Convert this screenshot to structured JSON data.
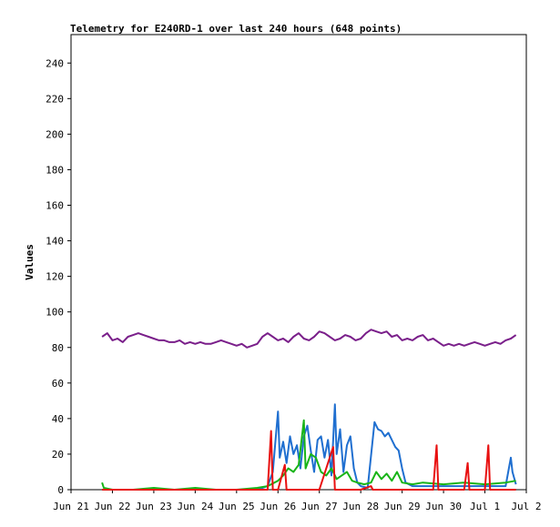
{
  "chart_data": {
    "type": "line",
    "title": "Telemetry for E240RD-1 over last 240 hours (648 points)",
    "xlabel": "",
    "ylabel": "Values",
    "ylim": [
      0,
      256
    ],
    "yticks": [
      0,
      20,
      40,
      60,
      80,
      100,
      120,
      140,
      160,
      180,
      200,
      220,
      240
    ],
    "xlim": [
      "2021-06-21",
      "2021-07-02"
    ],
    "xticks": [
      {
        "date": "2021-06-21",
        "label": "Jun 21"
      },
      {
        "date": "2021-06-22",
        "label": "Jun 22"
      },
      {
        "date": "2021-06-23",
        "label": "Jun 23"
      },
      {
        "date": "2021-06-24",
        "label": "Jun 24"
      },
      {
        "date": "2021-06-25",
        "label": "Jun 25"
      },
      {
        "date": "2021-06-26",
        "label": "Jun 26"
      },
      {
        "date": "2021-06-27",
        "label": "Jun 27"
      },
      {
        "date": "2021-06-28",
        "label": "Jun 28"
      },
      {
        "date": "2021-06-29",
        "label": "Jun 29"
      },
      {
        "date": "2021-06-30",
        "label": "Jun 30"
      },
      {
        "date": "2021-07-01",
        "label": "Jul 1"
      },
      {
        "date": "2021-07-02",
        "label": "Jul 2"
      }
    ],
    "grid": false,
    "legend": "none",
    "series": [
      {
        "color": "#7a1f8a",
        "points": [
          [
            "2021-06-21 18:00",
            86
          ],
          [
            "2021-06-21 21:00",
            88
          ],
          [
            "2021-06-22 00:00",
            84
          ],
          [
            "2021-06-22 03:00",
            85
          ],
          [
            "2021-06-22 06:00",
            83
          ],
          [
            "2021-06-22 09:00",
            86
          ],
          [
            "2021-06-22 12:00",
            87
          ],
          [
            "2021-06-22 15:00",
            88
          ],
          [
            "2021-06-22 18:00",
            87
          ],
          [
            "2021-06-22 21:00",
            86
          ],
          [
            "2021-06-23 00:00",
            85
          ],
          [
            "2021-06-23 03:00",
            84
          ],
          [
            "2021-06-23 06:00",
            84
          ],
          [
            "2021-06-23 09:00",
            83
          ],
          [
            "2021-06-23 12:00",
            83
          ],
          [
            "2021-06-23 15:00",
            84
          ],
          [
            "2021-06-23 18:00",
            82
          ],
          [
            "2021-06-23 21:00",
            83
          ],
          [
            "2021-06-24 00:00",
            82
          ],
          [
            "2021-06-24 03:00",
            83
          ],
          [
            "2021-06-24 06:00",
            82
          ],
          [
            "2021-06-24 09:00",
            82
          ],
          [
            "2021-06-24 12:00",
            83
          ],
          [
            "2021-06-24 15:00",
            84
          ],
          [
            "2021-06-24 18:00",
            83
          ],
          [
            "2021-06-24 21:00",
            82
          ],
          [
            "2021-06-25 00:00",
            81
          ],
          [
            "2021-06-25 03:00",
            82
          ],
          [
            "2021-06-25 06:00",
            80
          ],
          [
            "2021-06-25 09:00",
            81
          ],
          [
            "2021-06-25 12:00",
            82
          ],
          [
            "2021-06-25 15:00",
            86
          ],
          [
            "2021-06-25 18:00",
            88
          ],
          [
            "2021-06-25 21:00",
            86
          ],
          [
            "2021-06-26 00:00",
            84
          ],
          [
            "2021-06-26 03:00",
            85
          ],
          [
            "2021-06-26 06:00",
            83
          ],
          [
            "2021-06-26 09:00",
            86
          ],
          [
            "2021-06-26 12:00",
            88
          ],
          [
            "2021-06-26 15:00",
            85
          ],
          [
            "2021-06-26 18:00",
            84
          ],
          [
            "2021-06-26 21:00",
            86
          ],
          [
            "2021-06-27 00:00",
            89
          ],
          [
            "2021-06-27 03:00",
            88
          ],
          [
            "2021-06-27 06:00",
            86
          ],
          [
            "2021-06-27 09:00",
            84
          ],
          [
            "2021-06-27 12:00",
            85
          ],
          [
            "2021-06-27 15:00",
            87
          ],
          [
            "2021-06-27 18:00",
            86
          ],
          [
            "2021-06-27 21:00",
            84
          ],
          [
            "2021-06-28 00:00",
            85
          ],
          [
            "2021-06-28 03:00",
            88
          ],
          [
            "2021-06-28 06:00",
            90
          ],
          [
            "2021-06-28 09:00",
            89
          ],
          [
            "2021-06-28 12:00",
            88
          ],
          [
            "2021-06-28 15:00",
            89
          ],
          [
            "2021-06-28 18:00",
            86
          ],
          [
            "2021-06-28 21:00",
            87
          ],
          [
            "2021-06-29 00:00",
            84
          ],
          [
            "2021-06-29 03:00",
            85
          ],
          [
            "2021-06-29 06:00",
            84
          ],
          [
            "2021-06-29 09:00",
            86
          ],
          [
            "2021-06-29 12:00",
            87
          ],
          [
            "2021-06-29 15:00",
            84
          ],
          [
            "2021-06-29 18:00",
            85
          ],
          [
            "2021-06-29 21:00",
            83
          ],
          [
            "2021-06-30 00:00",
            81
          ],
          [
            "2021-06-30 03:00",
            82
          ],
          [
            "2021-06-30 06:00",
            81
          ],
          [
            "2021-06-30 09:00",
            82
          ],
          [
            "2021-06-30 12:00",
            81
          ],
          [
            "2021-06-30 15:00",
            82
          ],
          [
            "2021-06-30 18:00",
            83
          ],
          [
            "2021-06-30 21:00",
            82
          ],
          [
            "2021-07-01 00:00",
            81
          ],
          [
            "2021-07-01 03:00",
            82
          ],
          [
            "2021-07-01 06:00",
            83
          ],
          [
            "2021-07-01 09:00",
            82
          ],
          [
            "2021-07-01 12:00",
            84
          ],
          [
            "2021-07-01 15:00",
            85
          ],
          [
            "2021-07-01 18:00",
            87
          ]
        ]
      },
      {
        "color": "#1f6fd0",
        "points": [
          [
            "2021-06-21 18:00",
            0
          ],
          [
            "2021-06-22 12:00",
            0
          ],
          [
            "2021-06-23 12:00",
            0
          ],
          [
            "2021-06-24 12:00",
            0
          ],
          [
            "2021-06-25 12:00",
            0
          ],
          [
            "2021-06-25 18:00",
            2
          ],
          [
            "2021-06-25 21:00",
            10
          ],
          [
            "2021-06-26 00:00",
            44
          ],
          [
            "2021-06-26 01:00",
            18
          ],
          [
            "2021-06-26 03:00",
            27
          ],
          [
            "2021-06-26 05:00",
            15
          ],
          [
            "2021-06-26 07:00",
            30
          ],
          [
            "2021-06-26 09:00",
            20
          ],
          [
            "2021-06-26 11:00",
            25
          ],
          [
            "2021-06-26 13:00",
            12
          ],
          [
            "2021-06-26 15:00",
            30
          ],
          [
            "2021-06-26 17:00",
            36
          ],
          [
            "2021-06-26 19:00",
            22
          ],
          [
            "2021-06-26 21:00",
            10
          ],
          [
            "2021-06-26 23:00",
            28
          ],
          [
            "2021-06-27 01:00",
            30
          ],
          [
            "2021-06-27 03:00",
            18
          ],
          [
            "2021-06-27 05:00",
            28
          ],
          [
            "2021-06-27 07:00",
            8
          ],
          [
            "2021-06-27 09:00",
            48
          ],
          [
            "2021-06-27 10:00",
            20
          ],
          [
            "2021-06-27 12:00",
            34
          ],
          [
            "2021-06-27 14:00",
            10
          ],
          [
            "2021-06-27 16:00",
            25
          ],
          [
            "2021-06-27 18:00",
            30
          ],
          [
            "2021-06-27 20:00",
            12
          ],
          [
            "2021-06-27 22:00",
            4
          ],
          [
            "2021-06-28 00:00",
            2
          ],
          [
            "2021-06-28 04:00",
            1
          ],
          [
            "2021-06-28 08:00",
            38
          ],
          [
            "2021-06-28 10:00",
            34
          ],
          [
            "2021-06-28 12:00",
            33
          ],
          [
            "2021-06-28 14:00",
            30
          ],
          [
            "2021-06-28 16:00",
            32
          ],
          [
            "2021-06-28 18:00",
            28
          ],
          [
            "2021-06-28 20:00",
            24
          ],
          [
            "2021-06-28 22:00",
            22
          ],
          [
            "2021-06-29 00:00",
            12
          ],
          [
            "2021-06-29 02:00",
            4
          ],
          [
            "2021-06-29 06:00",
            2
          ],
          [
            "2021-06-29 12:00",
            2
          ],
          [
            "2021-06-30 00:00",
            2
          ],
          [
            "2021-06-30 12:00",
            2
          ],
          [
            "2021-07-01 00:00",
            2
          ],
          [
            "2021-07-01 12:00",
            2
          ],
          [
            "2021-07-01 15:00",
            18
          ],
          [
            "2021-07-01 16:00",
            10
          ],
          [
            "2021-07-01 18:00",
            3
          ]
        ]
      },
      {
        "color": "#18b418",
        "points": [
          [
            "2021-06-21 18:00",
            4
          ],
          [
            "2021-06-21 19:00",
            1
          ],
          [
            "2021-06-22 00:00",
            0
          ],
          [
            "2021-06-22 12:00",
            0
          ],
          [
            "2021-06-23 00:00",
            1
          ],
          [
            "2021-06-23 12:00",
            0
          ],
          [
            "2021-06-24 00:00",
            1
          ],
          [
            "2021-06-24 12:00",
            0
          ],
          [
            "2021-06-25 00:00",
            0
          ],
          [
            "2021-06-25 12:00",
            1
          ],
          [
            "2021-06-25 18:00",
            2
          ],
          [
            "2021-06-26 00:00",
            5
          ],
          [
            "2021-06-26 03:00",
            8
          ],
          [
            "2021-06-26 06:00",
            12
          ],
          [
            "2021-06-26 09:00",
            10
          ],
          [
            "2021-06-26 12:00",
            14
          ],
          [
            "2021-06-26 15:00",
            39
          ],
          [
            "2021-06-26 16:00",
            12
          ],
          [
            "2021-06-26 19:00",
            20
          ],
          [
            "2021-06-26 22:00",
            18
          ],
          [
            "2021-06-27 01:00",
            10
          ],
          [
            "2021-06-27 04:00",
            8
          ],
          [
            "2021-06-27 07:00",
            12
          ],
          [
            "2021-06-27 10:00",
            6
          ],
          [
            "2021-06-27 13:00",
            8
          ],
          [
            "2021-06-27 16:00",
            10
          ],
          [
            "2021-06-27 19:00",
            5
          ],
          [
            "2021-06-27 22:00",
            4
          ],
          [
            "2021-06-28 02:00",
            3
          ],
          [
            "2021-06-28 06:00",
            4
          ],
          [
            "2021-06-28 09:00",
            10
          ],
          [
            "2021-06-28 12:00",
            6
          ],
          [
            "2021-06-28 15:00",
            9
          ],
          [
            "2021-06-28 18:00",
            5
          ],
          [
            "2021-06-28 21:00",
            10
          ],
          [
            "2021-06-29 00:00",
            4
          ],
          [
            "2021-06-29 06:00",
            3
          ],
          [
            "2021-06-29 12:00",
            4
          ],
          [
            "2021-06-30 00:00",
            3
          ],
          [
            "2021-06-30 12:00",
            4
          ],
          [
            "2021-07-01 00:00",
            3
          ],
          [
            "2021-07-01 12:00",
            4
          ],
          [
            "2021-07-01 18:00",
            5
          ]
        ]
      },
      {
        "color": "#e81010",
        "points": [
          [
            "2021-06-21 18:00",
            0
          ],
          [
            "2021-06-25 18:00",
            0
          ],
          [
            "2021-06-25 20:00",
            33
          ],
          [
            "2021-06-25 21:00",
            0
          ],
          [
            "2021-06-26 00:00",
            0
          ],
          [
            "2021-06-26 04:00",
            14
          ],
          [
            "2021-06-26 05:00",
            0
          ],
          [
            "2021-06-27 00:00",
            0
          ],
          [
            "2021-06-27 08:00",
            24
          ],
          [
            "2021-06-27 09:00",
            0
          ],
          [
            "2021-06-28 00:00",
            0
          ],
          [
            "2021-06-28 06:00",
            2
          ],
          [
            "2021-06-28 07:00",
            0
          ],
          [
            "2021-06-29 00:00",
            0
          ],
          [
            "2021-06-29 18:00",
            0
          ],
          [
            "2021-06-29 20:00",
            25
          ],
          [
            "2021-06-29 21:00",
            0
          ],
          [
            "2021-06-30 12:00",
            0
          ],
          [
            "2021-06-30 14:00",
            15
          ],
          [
            "2021-06-30 15:00",
            0
          ],
          [
            "2021-07-01 00:00",
            0
          ],
          [
            "2021-07-01 02:00",
            25
          ],
          [
            "2021-07-01 03:00",
            0
          ],
          [
            "2021-07-01 18:00",
            0
          ]
        ]
      }
    ]
  }
}
